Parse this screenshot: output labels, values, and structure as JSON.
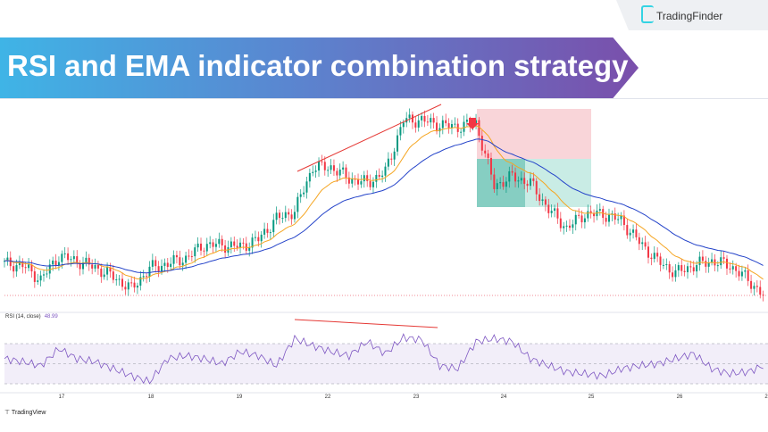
{
  "banner": {
    "title": "RSI and EMA indicator combination strategy"
  },
  "brand": {
    "name": "TradingFinder",
    "footer": "TradingView"
  },
  "colors": {
    "up": "#089981",
    "down": "#f23645",
    "ema_fast": "#f5a623",
    "ema_slow": "#2443c9",
    "rsi": "#7e57c2",
    "trendline": "#e53935",
    "stop_zone": "#f9d5d9",
    "target_zone": "#c9ece5"
  },
  "chart_data": {
    "type": "line",
    "title": "",
    "x_ticks": [
      "17",
      "18",
      "19",
      "22",
      "23",
      "24",
      "25",
      "26",
      "2"
    ],
    "series": [
      {
        "kind": "price",
        "values": [
          52,
          50,
          35,
          60,
          55,
          48,
          38,
          25,
          47,
          52,
          58,
          72,
          72,
          70,
          78,
          100,
          108,
          155,
          155,
          143,
          138,
          150,
          205,
          205,
          200,
          198,
          202,
          135,
          145,
          138,
          110,
          90,
          105,
          105,
          98,
          75,
          55,
          42,
          50,
          55,
          50,
          35,
          15
        ]
      },
      {
        "kind": "rsi",
        "values": [
          55,
          52,
          48,
          65,
          55,
          52,
          45,
          38,
          32,
          55,
          58,
          55,
          50,
          62,
          58,
          48,
          75,
          68,
          62,
          58,
          72,
          60,
          76,
          74,
          48,
          45,
          72,
          75,
          72,
          55,
          48,
          42,
          40,
          38,
          45,
          48,
          50,
          55,
          60,
          45,
          40,
          42,
          49
        ]
      }
    ],
    "rsi": {
      "label": "RSI (14, close)",
      "value": "48.99",
      "levels": [
        70,
        50,
        30
      ],
      "ylim": [
        0,
        100
      ]
    },
    "annotations": [
      "bearish divergence trendline on price",
      "bearish divergence trendline on RSI",
      "sell arrow",
      "short position stop/target boxes"
    ]
  }
}
